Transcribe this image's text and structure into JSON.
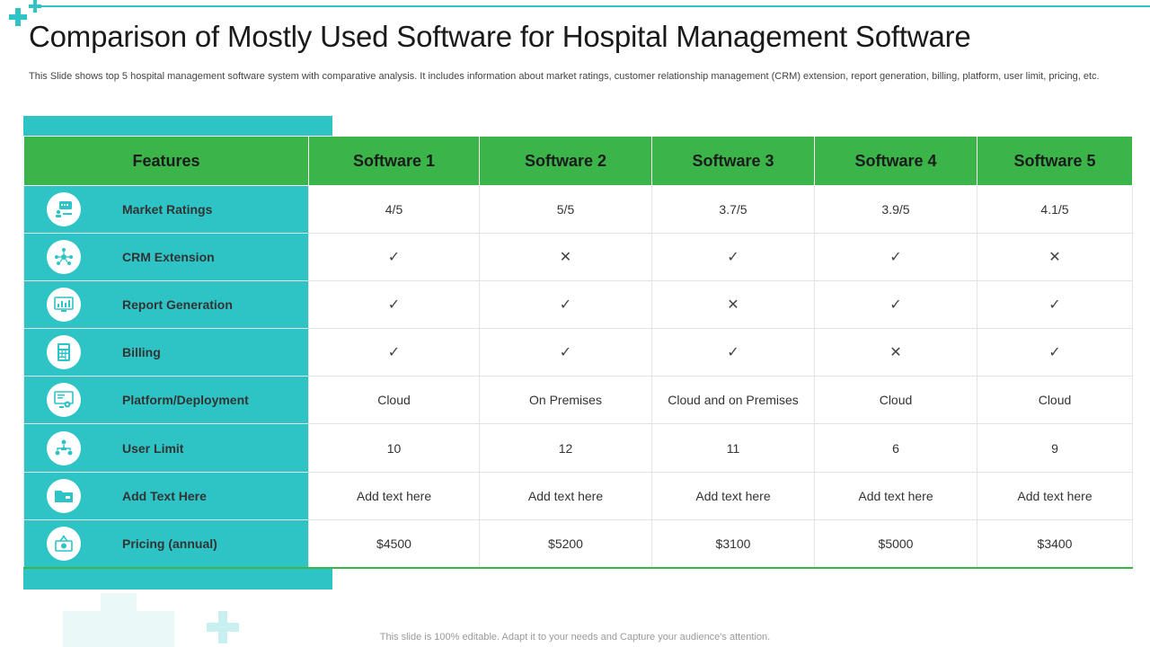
{
  "title": "Comparison of Mostly Used Software for Hospital Management Software",
  "subtitle": "This Slide shows top 5 hospital management software system with comparative analysis. It includes information about market ratings, customer relationship management (CRM) extension, report generation, billing, platform, user limit, pricing, etc.",
  "footer": "This slide is 100% editable. Adapt it to your needs and Capture your audience's attention.",
  "colors": {
    "teal": "#2ec4c6",
    "green": "#3bb54a"
  },
  "table": {
    "headers": [
      "Features",
      "Software 1",
      "Software 2",
      "Software 3",
      "Software 4",
      "Software 5"
    ],
    "rows": [
      {
        "feature": "Market Ratings",
        "icon": "rating-chat-icon",
        "values": [
          "4/5",
          "5/5",
          "3.7/5",
          "3.9/5",
          "4.1/5"
        ]
      },
      {
        "feature": "CRM Extension",
        "icon": "network-people-icon",
        "values": [
          "✓",
          "✕",
          "✓",
          "✓",
          "✕"
        ]
      },
      {
        "feature": "Report Generation",
        "icon": "report-chart-icon",
        "values": [
          "✓",
          "✓",
          "✕",
          "✓",
          "✓"
        ]
      },
      {
        "feature": "Billing",
        "icon": "calculator-icon",
        "values": [
          "✓",
          "✓",
          "✓",
          "✕",
          "✓"
        ]
      },
      {
        "feature": "Platform/Deployment",
        "icon": "monitor-gear-icon",
        "values": [
          "Cloud",
          "On Premises",
          "Cloud and on Premises",
          "Cloud",
          "Cloud"
        ]
      },
      {
        "feature": "User Limit",
        "icon": "users-hierarchy-icon",
        "values": [
          "10",
          "12",
          "11",
          "6",
          "9"
        ]
      },
      {
        "feature": "Add Text Here",
        "icon": "folder-icon",
        "values": [
          "Add text here",
          "Add text here",
          "Add text here",
          "Add text here",
          "Add text here"
        ]
      },
      {
        "feature": "Pricing (annual)",
        "icon": "price-money-icon",
        "values": [
          "$4500",
          "$5200",
          "$3100",
          "$5000",
          "$3400"
        ]
      }
    ]
  }
}
